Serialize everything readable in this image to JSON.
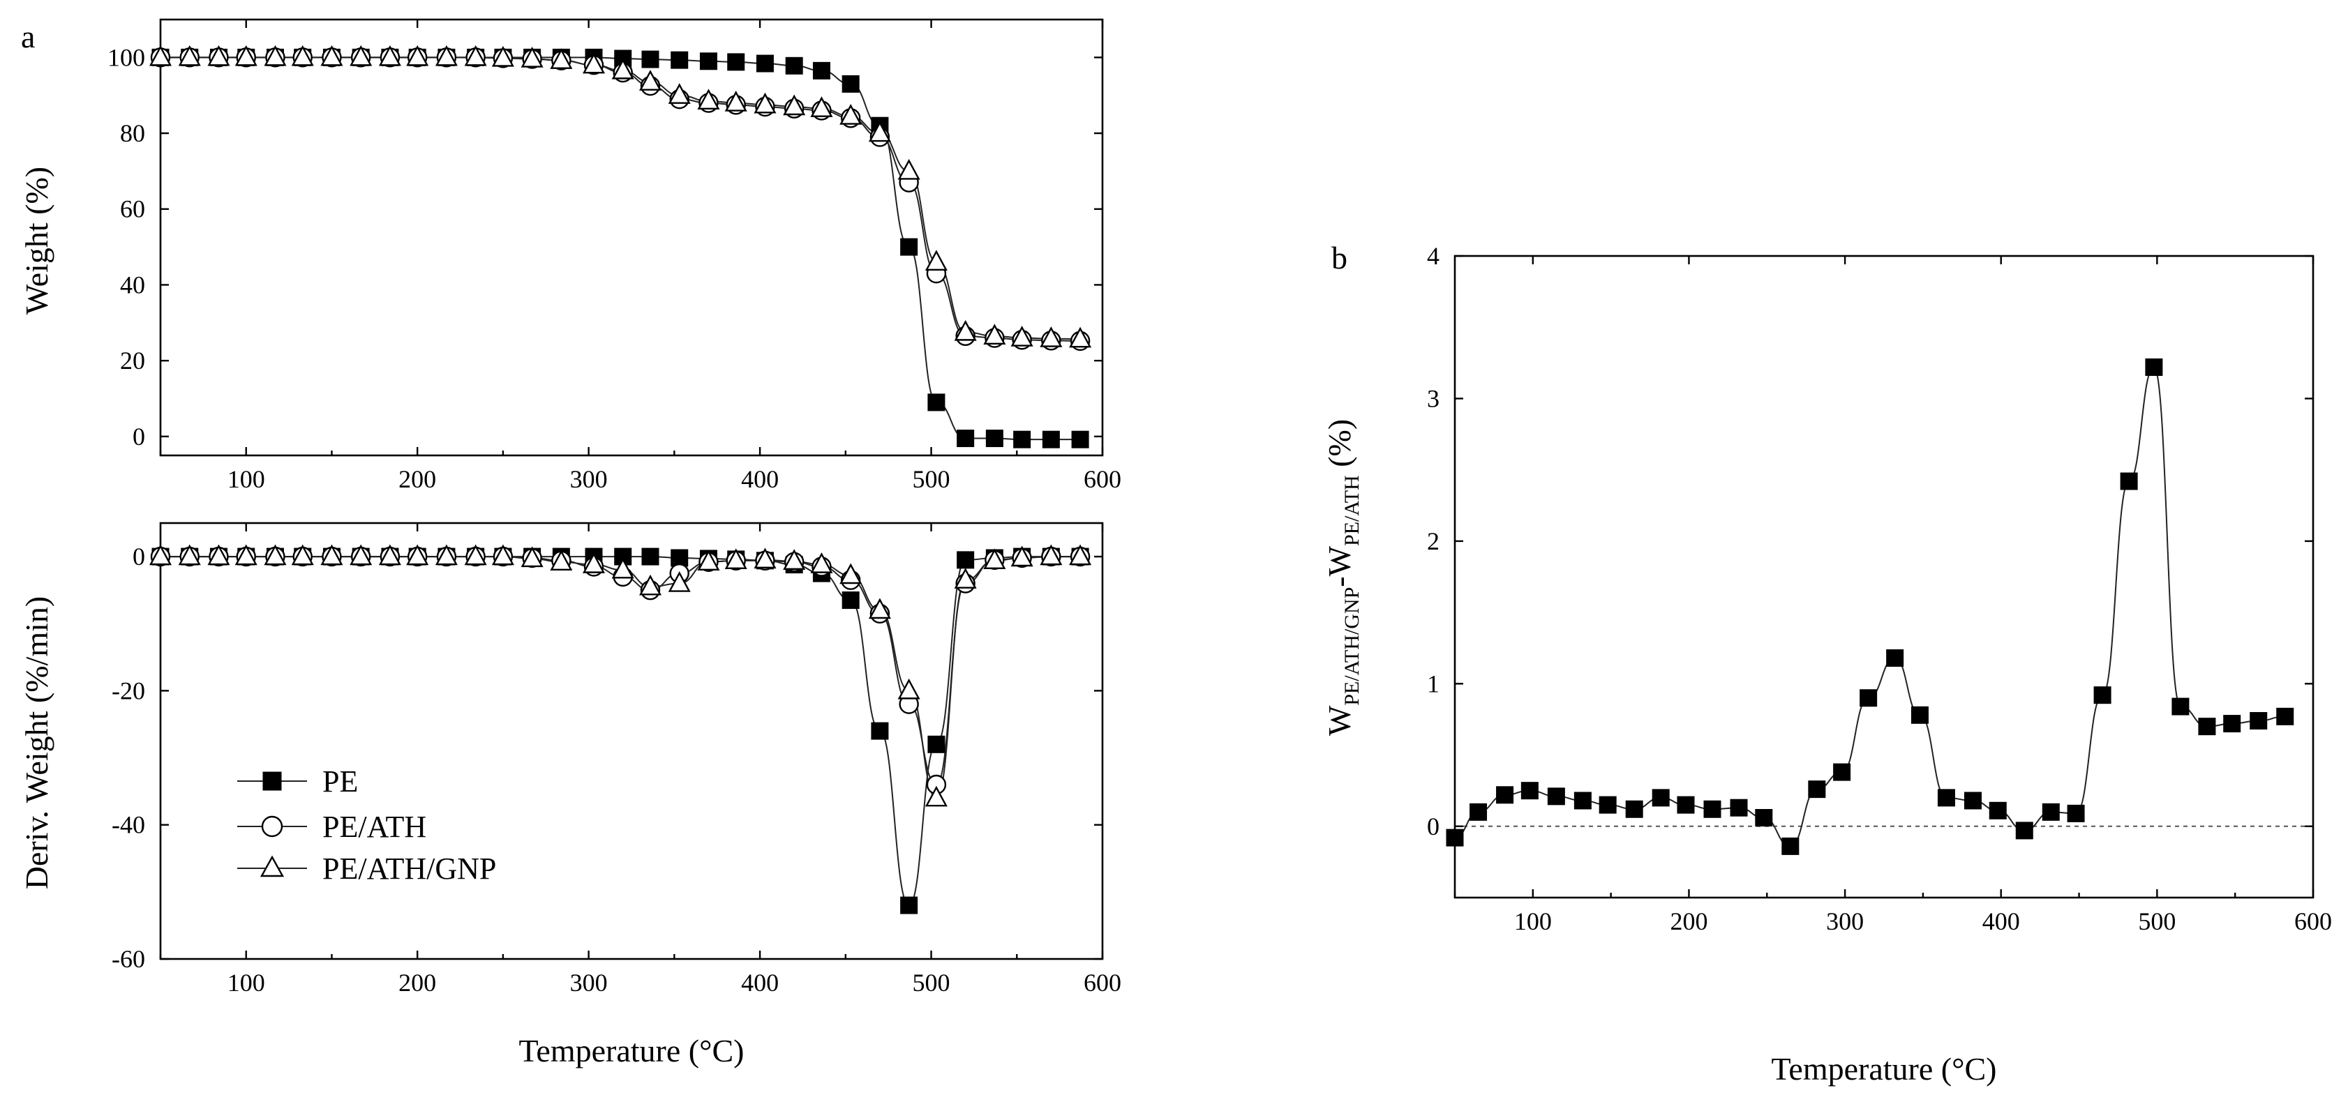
{
  "chart_data": [
    {
      "id": "a-top",
      "type": "line",
      "panel_label": "a",
      "ylabel": "Weight (%)",
      "xlabel": "",
      "xlim": [
        50,
        600
      ],
      "ylim": [
        -5,
        110
      ],
      "xticks": [
        100,
        200,
        300,
        400,
        500,
        600
      ],
      "yticks": [
        0,
        20,
        40,
        60,
        80,
        100
      ],
      "series": [
        {
          "name": "PE",
          "marker": "square-filled",
          "x": [
            50,
            67,
            84,
            100,
            117,
            133,
            150,
            167,
            184,
            200,
            217,
            234,
            250,
            267,
            284,
            303,
            320,
            336,
            353,
            370,
            386,
            403,
            420,
            436,
            453,
            470,
            487,
            503,
            520,
            537,
            553,
            570,
            587
          ],
          "y": [
            100,
            100,
            100,
            100,
            100,
            100,
            100,
            100,
            100,
            100,
            100,
            100,
            100,
            100,
            100,
            100,
            99.7,
            99.5,
            99.3,
            99,
            98.8,
            98.4,
            97.8,
            96.5,
            93,
            82,
            50,
            9,
            -0.5,
            -0.5,
            -0.8,
            -0.8,
            -0.8
          ]
        },
        {
          "name": "PE/ATH",
          "marker": "circle-open",
          "x": [
            50,
            67,
            84,
            100,
            117,
            133,
            150,
            167,
            184,
            200,
            217,
            234,
            250,
            267,
            284,
            303,
            320,
            336,
            353,
            370,
            386,
            403,
            420,
            436,
            453,
            470,
            487,
            503,
            520,
            537,
            553,
            570,
            587
          ],
          "y": [
            100,
            100,
            100,
            100,
            100,
            100,
            100,
            100,
            100,
            100,
            100,
            100,
            99.8,
            99.6,
            99.2,
            98,
            96,
            92.5,
            89,
            88,
            87.5,
            87,
            86.5,
            86,
            84,
            79,
            67,
            43,
            26.5,
            26,
            25.5,
            25.3,
            25.2
          ]
        },
        {
          "name": "PE/ATH/GNP",
          "marker": "triangle-open",
          "x": [
            50,
            67,
            84,
            100,
            117,
            133,
            150,
            167,
            184,
            200,
            217,
            234,
            250,
            267,
            284,
            303,
            320,
            336,
            353,
            370,
            386,
            403,
            420,
            436,
            453,
            470,
            487,
            503,
            520,
            537,
            553,
            570,
            587
          ],
          "y": [
            100,
            100,
            100,
            100,
            100,
            100,
            100,
            100,
            100,
            100,
            100,
            100,
            99.8,
            99.6,
            99.2,
            98,
            96.5,
            93.5,
            90,
            88.5,
            88,
            87.5,
            87,
            86.5,
            84.5,
            80,
            70,
            46,
            27.5,
            26.5,
            26,
            25.8,
            25.7
          ]
        }
      ]
    },
    {
      "id": "a-bottom",
      "type": "line",
      "panel_label": "",
      "ylabel": "Deriv. Weight (%/min)",
      "xlabel": "Temperature (°C)",
      "xlim": [
        50,
        600
      ],
      "ylim": [
        -60,
        5
      ],
      "xticks": [
        100,
        200,
        300,
        400,
        500,
        600
      ],
      "yticks": [
        0,
        -20,
        -40,
        -60
      ],
      "legend": [
        "PE",
        "PE/ATH",
        "PE/ATH/GNP"
      ],
      "series": [
        {
          "name": "PE",
          "marker": "square-filled",
          "x": [
            50,
            67,
            84,
            100,
            117,
            133,
            150,
            167,
            184,
            200,
            217,
            234,
            250,
            267,
            284,
            303,
            320,
            336,
            353,
            370,
            386,
            403,
            420,
            436,
            453,
            470,
            487,
            503,
            520,
            537,
            553,
            570,
            587
          ],
          "y": [
            0,
            0,
            0,
            0,
            0,
            0,
            0,
            0,
            0,
            0,
            0,
            0,
            0,
            0,
            0,
            0,
            0,
            0,
            -0.2,
            -0.3,
            -0.4,
            -0.6,
            -1.2,
            -2.5,
            -6.5,
            -26,
            -52,
            -28,
            -0.5,
            -0.2,
            0,
            0,
            0
          ]
        },
        {
          "name": "PE/ATH",
          "marker": "circle-open",
          "x": [
            50,
            67,
            84,
            100,
            117,
            133,
            150,
            167,
            184,
            200,
            217,
            234,
            250,
            267,
            284,
            303,
            320,
            336,
            353,
            370,
            386,
            403,
            420,
            436,
            453,
            470,
            487,
            503,
            520,
            537,
            553,
            570,
            587
          ],
          "y": [
            0,
            0,
            0,
            0,
            0,
            0,
            0,
            0,
            0,
            0,
            0,
            0,
            0,
            -0.2,
            -0.6,
            -1.5,
            -3,
            -5,
            -2.5,
            -0.8,
            -0.6,
            -0.6,
            -0.8,
            -1.5,
            -3.5,
            -8.5,
            -22,
            -34,
            -4,
            -0.5,
            -0.2,
            0,
            0
          ]
        },
        {
          "name": "PE/ATH/GNP",
          "marker": "triangle-open",
          "x": [
            50,
            67,
            84,
            100,
            117,
            133,
            150,
            167,
            184,
            200,
            217,
            234,
            250,
            267,
            284,
            303,
            320,
            336,
            353,
            370,
            386,
            403,
            420,
            436,
            453,
            470,
            487,
            503,
            520,
            537,
            553,
            570,
            587
          ],
          "y": [
            0,
            0,
            0,
            0,
            0,
            0,
            0,
            0,
            0,
            0,
            0,
            0,
            0,
            -0.3,
            -0.8,
            -1.2,
            -2,
            -4.5,
            -4,
            -0.8,
            -0.6,
            -0.5,
            -0.7,
            -1.2,
            -2.8,
            -8,
            -20,
            -36,
            -3.5,
            -0.6,
            -0.2,
            0,
            0
          ]
        }
      ]
    },
    {
      "id": "b",
      "type": "line",
      "panel_label": "b",
      "ylabel_main": "W",
      "ylabel_sub1": "PE/ATH/GNP",
      "ylabel_mid": "-W",
      "ylabel_sub2": "PE/ATH",
      "ylabel_tail": " (%)",
      "xlabel": "Temperature (°C)",
      "xlim": [
        50,
        600
      ],
      "ylim": [
        -0.5,
        4
      ],
      "xticks": [
        100,
        200,
        300,
        400,
        500,
        600
      ],
      "yticks": [
        0,
        1,
        2,
        3,
        4
      ],
      "reference_line": 0,
      "series": [
        {
          "name": "WPE/ATH/GNP-WPE/ATH",
          "marker": "square-filled",
          "x": [
            50,
            65,
            82,
            98,
            115,
            132,
            148,
            165,
            182,
            198,
            215,
            232,
            248,
            265,
            282,
            298,
            315,
            332,
            348,
            365,
            382,
            398,
            415,
            432,
            448,
            465,
            482,
            498,
            515,
            532,
            548,
            565,
            582
          ],
          "y": [
            -0.08,
            0.1,
            0.22,
            0.25,
            0.21,
            0.18,
            0.15,
            0.12,
            0.2,
            0.15,
            0.12,
            0.13,
            0.06,
            -0.14,
            0.26,
            0.38,
            0.9,
            1.18,
            0.78,
            0.2,
            0.18,
            0.11,
            -0.03,
            0.1,
            0.09,
            0.92,
            2.42,
            3.22,
            0.84,
            0.7,
            0.72,
            0.74,
            0.77
          ]
        }
      ]
    }
  ]
}
